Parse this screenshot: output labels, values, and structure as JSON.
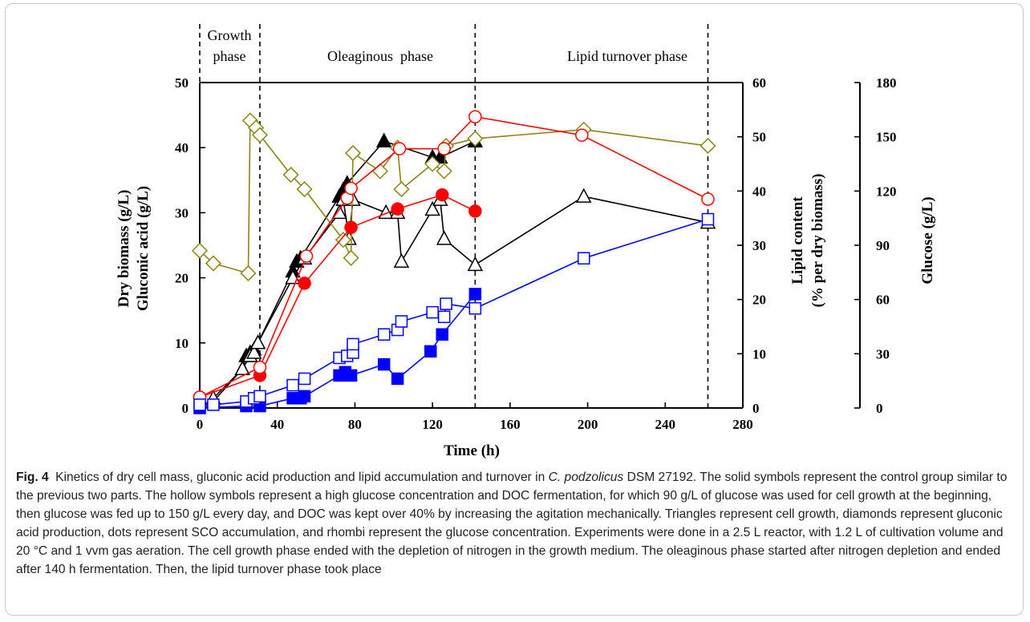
{
  "chart_data": {
    "type": "line",
    "xlabel": "Time (h)",
    "ylabel_left_line1": "Dry biomass (g/L)",
    "ylabel_left_line2": "Gluconic acid (g/L)",
    "ylabel_right_line1": "Lipid content",
    "ylabel_right_line2": "(% per dry biomass)",
    "ylabel_glucose": "Glucose (g/L)",
    "xlim": [
      0,
      280
    ],
    "xticks": [
      0,
      40,
      80,
      120,
      160,
      200,
      240,
      280
    ],
    "ylim_left": [
      0,
      50
    ],
    "yticks_left": [
      0,
      10,
      20,
      30,
      40,
      50
    ],
    "ylim_right": [
      0,
      60
    ],
    "yticks_right": [
      0,
      10,
      20,
      30,
      40,
      50,
      60
    ],
    "ylim_glucose": [
      0,
      180
    ],
    "yticks_glucose": [
      0,
      30,
      60,
      90,
      120,
      150,
      180
    ],
    "phase_boundaries": [
      0,
      31,
      142,
      262
    ],
    "phases": [
      {
        "label_line1": "Growth",
        "label_line2": "phase"
      },
      {
        "label_line1": "Oleaginous  phase",
        "label_line2": ""
      },
      {
        "label_line1": "Lipid turnover phase",
        "label_line2": ""
      }
    ],
    "series": [
      {
        "marker": "triangle",
        "filled": true,
        "color": "#000000",
        "axis": "left",
        "x": [
          7,
          22,
          24,
          26,
          28,
          30,
          48,
          50,
          52,
          72,
          74,
          76,
          95,
          120,
          124,
          142
        ],
        "y": [
          1,
          6,
          8,
          8.5,
          9,
          10,
          21,
          22.5,
          23,
          32.5,
          33.5,
          34.5,
          41,
          38.5,
          38.5,
          41
        ]
      },
      {
        "marker": "triangle",
        "filled": false,
        "color": "#000000",
        "axis": "left",
        "x": [
          7,
          22,
          26,
          28,
          30,
          48,
          54,
          72,
          74,
          77,
          79,
          96,
          102,
          104,
          120,
          124,
          126,
          142,
          198,
          262
        ],
        "y": [
          1.5,
          6,
          8,
          8.5,
          10,
          20,
          23,
          30,
          32,
          26,
          32,
          30,
          30,
          22.5,
          30.5,
          32,
          26,
          22,
          32.5,
          28.5
        ]
      },
      {
        "marker": "diamond",
        "filled": false,
        "color": "#8c8417",
        "axis": "glucose",
        "x": [
          0,
          7,
          25,
          26,
          29,
          31,
          47,
          54,
          74,
          78,
          79,
          93,
          102,
          104,
          120,
          126,
          127,
          142,
          198,
          262
        ],
        "y": [
          87,
          80,
          74.5,
          159,
          155,
          151,
          129,
          121,
          93,
          83,
          141,
          131,
          144,
          121,
          135,
          131,
          145,
          149,
          154,
          145
        ]
      },
      {
        "marker": "circle",
        "filled": true,
        "color": "#ff0000",
        "axis": "right",
        "x": [
          0,
          31,
          54,
          78,
          102,
          125,
          142
        ],
        "y": [
          2,
          6,
          23,
          33.3,
          36.7,
          39.3,
          36.3
        ]
      },
      {
        "marker": "circle",
        "filled": false,
        "color": "#ff0000",
        "axis": "right",
        "x": [
          0,
          31,
          55,
          76,
          78,
          103,
          126,
          142,
          197,
          262
        ],
        "y": [
          2,
          7.5,
          28,
          38.7,
          40.5,
          47.8,
          47.8,
          53.7,
          50.3,
          38.5
        ]
      },
      {
        "marker": "square",
        "filled": true,
        "color": "#0000ff",
        "axis": "left",
        "x": [
          0,
          24,
          31,
          48,
          52,
          54,
          72,
          75,
          78,
          95,
          102,
          119,
          125,
          142
        ],
        "y": [
          0,
          0.3,
          0.3,
          1.5,
          1.5,
          1.8,
          5,
          5.5,
          5,
          6.7,
          4.5,
          8.7,
          11.3,
          17.5
        ]
      },
      {
        "marker": "square",
        "filled": false,
        "color": "#0000ff",
        "axis": "left",
        "x": [
          0,
          7,
          24,
          28,
          31,
          48,
          54,
          72,
          76,
          79,
          79,
          95,
          102,
          104,
          120,
          126,
          127,
          142,
          198,
          262
        ],
        "y": [
          0.5,
          0.5,
          1,
          1.5,
          1.8,
          3.5,
          4.5,
          7.7,
          8,
          8.5,
          9.8,
          11.3,
          12,
          13.3,
          14.7,
          14,
          16,
          15.3,
          23,
          29
        ]
      }
    ]
  },
  "caption": {
    "label": "Fig. 4",
    "text_before_italic": "Kinetics of dry cell mass, gluconic acid production and lipid accumulation and turnover in ",
    "italic": "C. podzolicus",
    "text_after_italic": " DSM 27192. The solid symbols represent the control group similar to the previous two parts. The hollow symbols represent a high glucose concentration and DOC fermentation, for which 90 g/L of glucose was used for cell growth at the beginning, then glucose was fed up to 150 g/L every day, and DOC was kept over 40% by increasing the agitation mechanically. Triangles represent cell growth, diamonds represent gluconic acid production, dots represent SCO accumulation, and rhombi represent the glucose concentration. Experiments were done in a 2.5 L reactor, with 1.2 L of cultivation volume and 20 °C and 1 vvm gas aeration. The cell growth phase ended with the depletion of nitrogen in the growth medium. The oleaginous phase started after nitrogen depletion and ended after 140 h fermentation. Then, the lipid turnover phase took place"
  }
}
